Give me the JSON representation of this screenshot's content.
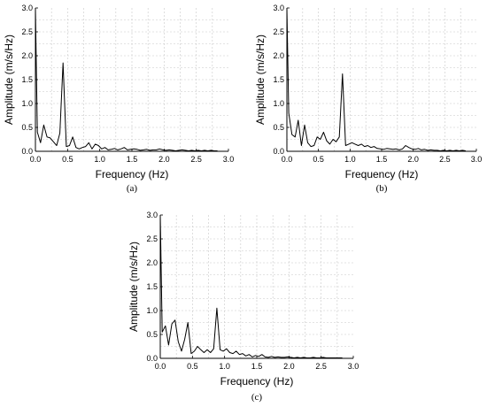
{
  "chart_data": [
    {
      "type": "line",
      "panel_label": "(a)",
      "xlabel": "Frequency (Hz)",
      "ylabel": "Amplitude (m/s/Hz)",
      "xlim": [
        0.0,
        3.0
      ],
      "ylim": [
        0.0,
        3.0
      ],
      "x_ticks": [
        "0.0",
        "0.5",
        "1.0",
        "1.5",
        "2.0",
        "2.5",
        "3.0"
      ],
      "y_ticks": [
        "0.0",
        "0.5",
        "1.0",
        "1.5",
        "2.0",
        "2.5",
        "3.0"
      ],
      "grid": true,
      "line_color": "#000000",
      "series": [
        {
          "x": [
            0.0,
            0.03,
            0.08,
            0.13,
            0.18,
            0.23,
            0.28,
            0.33,
            0.38,
            0.43,
            0.48,
            0.53,
            0.58,
            0.63,
            0.68,
            0.73,
            0.78,
            0.83,
            0.88,
            0.93,
            0.98,
            1.03,
            1.08,
            1.13,
            1.18,
            1.23,
            1.28,
            1.33,
            1.38,
            1.43,
            1.48,
            1.53,
            1.58,
            1.63,
            1.68,
            1.73,
            1.78,
            1.83,
            1.88,
            1.93,
            1.98,
            2.03,
            2.08,
            2.13,
            2.18,
            2.23,
            2.28,
            2.33,
            2.38,
            2.43,
            2.48,
            2.53,
            2.58,
            2.63,
            2.68,
            2.73,
            2.78,
            2.83
          ],
          "y": [
            3.0,
            0.4,
            0.18,
            0.55,
            0.3,
            0.28,
            0.2,
            0.12,
            0.38,
            1.85,
            0.1,
            0.12,
            0.3,
            0.08,
            0.05,
            0.08,
            0.1,
            0.18,
            0.05,
            0.15,
            0.12,
            0.05,
            0.08,
            0.03,
            0.04,
            0.06,
            0.03,
            0.05,
            0.08,
            0.03,
            0.04,
            0.05,
            0.04,
            0.02,
            0.03,
            0.04,
            0.02,
            0.03,
            0.03,
            0.05,
            0.03,
            0.02,
            0.03,
            0.02,
            0.01,
            0.02,
            0.03,
            0.02,
            0.01,
            0.02,
            0.01,
            0.02,
            0.01,
            0.02,
            0.01,
            0.02,
            0.01,
            0.01
          ]
        }
      ]
    },
    {
      "type": "line",
      "panel_label": "(b)",
      "xlabel": "Frequency (Hz)",
      "ylabel": "Amplitude (m/s/Hz)",
      "xlim": [
        0.0,
        3.0
      ],
      "ylim": [
        0.0,
        3.0
      ],
      "x_ticks": [
        "0.0",
        "0.5",
        "1.0",
        "1.5",
        "2.0",
        "2.5",
        "3.0"
      ],
      "y_ticks": [
        "0.0",
        "0.5",
        "1.0",
        "1.5",
        "2.0",
        "2.5",
        "3.0"
      ],
      "grid": true,
      "line_color": "#000000",
      "series": [
        {
          "x": [
            0.0,
            0.03,
            0.08,
            0.13,
            0.18,
            0.23,
            0.28,
            0.33,
            0.38,
            0.43,
            0.48,
            0.53,
            0.58,
            0.63,
            0.68,
            0.73,
            0.78,
            0.83,
            0.88,
            0.93,
            0.98,
            1.03,
            1.08,
            1.13,
            1.18,
            1.23,
            1.28,
            1.33,
            1.38,
            1.43,
            1.48,
            1.53,
            1.58,
            1.63,
            1.68,
            1.73,
            1.78,
            1.83,
            1.88,
            1.93,
            1.98,
            2.03,
            2.08,
            2.13,
            2.18,
            2.23,
            2.28,
            2.33,
            2.38,
            2.43,
            2.48,
            2.53,
            2.58,
            2.63,
            2.68,
            2.73,
            2.78,
            2.83
          ],
          "y": [
            3.0,
            0.8,
            0.35,
            0.3,
            0.65,
            0.12,
            0.55,
            0.18,
            0.1,
            0.12,
            0.3,
            0.25,
            0.4,
            0.22,
            0.15,
            0.25,
            0.2,
            0.3,
            1.62,
            0.12,
            0.15,
            0.18,
            0.15,
            0.12,
            0.15,
            0.1,
            0.12,
            0.08,
            0.1,
            0.06,
            0.05,
            0.04,
            0.06,
            0.05,
            0.04,
            0.05,
            0.03,
            0.05,
            0.12,
            0.08,
            0.05,
            0.04,
            0.06,
            0.03,
            0.04,
            0.02,
            0.03,
            0.02,
            0.02,
            0.01,
            0.02,
            0.01,
            0.02,
            0.01,
            0.02,
            0.01,
            0.02,
            0.01
          ]
        }
      ]
    },
    {
      "type": "line",
      "panel_label": "(c)",
      "xlabel": "Frequency (Hz)",
      "ylabel": "Amplitude (m/s/Hz)",
      "xlim": [
        0.0,
        3.0
      ],
      "ylim": [
        0.0,
        3.0
      ],
      "x_ticks": [
        "0.0",
        "0.5",
        "1.0",
        "1.5",
        "2.0",
        "2.5",
        "3.0"
      ],
      "y_ticks": [
        "0.0",
        "0.5",
        "1.0",
        "1.5",
        "2.0",
        "2.5",
        "3.0"
      ],
      "grid": true,
      "line_color": "#000000",
      "series": [
        {
          "x": [
            0.0,
            0.03,
            0.08,
            0.13,
            0.18,
            0.23,
            0.28,
            0.33,
            0.38,
            0.43,
            0.48,
            0.53,
            0.58,
            0.63,
            0.68,
            0.73,
            0.78,
            0.83,
            0.88,
            0.93,
            0.98,
            1.03,
            1.08,
            1.13,
            1.18,
            1.23,
            1.28,
            1.33,
            1.38,
            1.43,
            1.48,
            1.53,
            1.58,
            1.63,
            1.68,
            1.73,
            1.78,
            1.83,
            1.88,
            1.93,
            1.98,
            2.03,
            2.08,
            2.13,
            2.18,
            2.23,
            2.28,
            2.33,
            2.38,
            2.43,
            2.48,
            2.53,
            2.58,
            2.63,
            2.68,
            2.73,
            2.78,
            2.83
          ],
          "y": [
            3.0,
            0.55,
            0.68,
            0.28,
            0.72,
            0.8,
            0.35,
            0.15,
            0.4,
            0.75,
            0.1,
            0.15,
            0.25,
            0.18,
            0.12,
            0.18,
            0.12,
            0.2,
            1.05,
            0.18,
            0.15,
            0.2,
            0.12,
            0.1,
            0.15,
            0.08,
            0.1,
            0.05,
            0.08,
            0.03,
            0.06,
            0.04,
            0.08,
            0.03,
            0.02,
            0.04,
            0.02,
            0.03,
            0.02,
            0.02,
            0.03,
            0.02,
            0.01,
            0.02,
            0.01,
            0.02,
            0.01,
            0.01,
            0.02,
            0.01,
            0.01,
            0.02,
            0.01,
            0.01,
            0.01,
            0.01,
            0.01,
            0.01
          ]
        }
      ]
    }
  ]
}
